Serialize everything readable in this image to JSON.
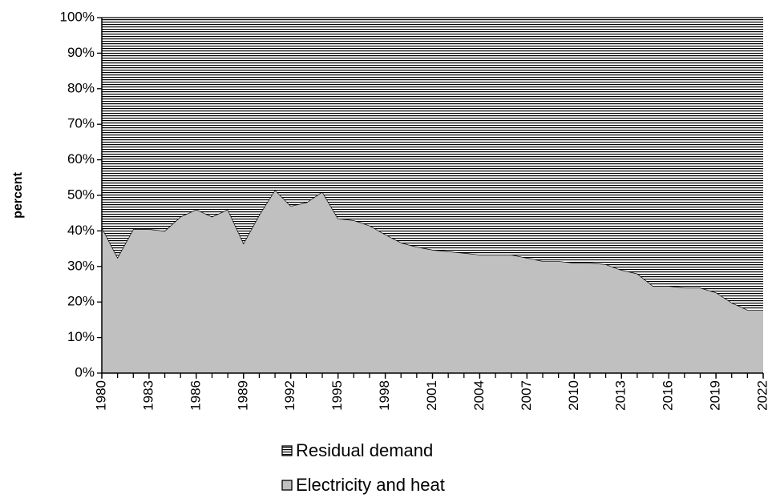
{
  "chart_data": {
    "type": "stacked-area",
    "y_label": "percent",
    "x": [
      1980,
      1981,
      1982,
      1983,
      1984,
      1985,
      1986,
      1987,
      1988,
      1989,
      1990,
      1991,
      1992,
      1993,
      1994,
      1995,
      1996,
      1997,
      1998,
      1999,
      2000,
      2001,
      2002,
      2003,
      2004,
      2005,
      2006,
      2007,
      2008,
      2009,
      2010,
      2011,
      2012,
      2013,
      2014,
      2015,
      2016,
      2017,
      2018,
      2019,
      2020,
      2021,
      2022
    ],
    "xlim": [
      1980,
      2022
    ],
    "xticks": [
      1980,
      1983,
      1986,
      1989,
      1992,
      1995,
      1998,
      2001,
      2004,
      2007,
      2010,
      2013,
      2016,
      2019,
      2022
    ],
    "ylim": [
      0,
      100
    ],
    "yticks": [
      {
        "value": 0,
        "label": "0%"
      },
      {
        "value": 10,
        "label": "10%"
      },
      {
        "value": 20,
        "label": "20%"
      },
      {
        "value": 30,
        "label": "30%"
      },
      {
        "value": 40,
        "label": "40%"
      },
      {
        "value": 50,
        "label": "50%"
      },
      {
        "value": 60,
        "label": "60%"
      },
      {
        "value": 70,
        "label": "70%"
      },
      {
        "value": 80,
        "label": "80%"
      },
      {
        "value": 90,
        "label": "90%"
      },
      {
        "value": 100,
        "label": "100%"
      }
    ],
    "legend": "bottom",
    "series": [
      {
        "name": "Electricity and heat",
        "color": "#c0c0c0",
        "pattern": "solid",
        "values": [
          41,
          32.5,
          40.5,
          40.5,
          40,
          44,
          46,
          44,
          46,
          36.5,
          44.5,
          51.5,
          47,
          48,
          51,
          43.5,
          43,
          41.5,
          39,
          36.7,
          35.5,
          34.7,
          34.2,
          33.8,
          33.3,
          33.3,
          33.3,
          32.4,
          31.5,
          31.5,
          31,
          31,
          30.6,
          29,
          28,
          24.5,
          24.5,
          24,
          24,
          22.7,
          19.8,
          17.8,
          17.8
        ]
      },
      {
        "name": "Residual demand",
        "color": "#000000",
        "pattern": "horizontal",
        "values": [
          59,
          67.5,
          59.5,
          59.5,
          60,
          56,
          54,
          56,
          54,
          63.5,
          55.5,
          48.5,
          53,
          52,
          49,
          56.5,
          57,
          58.5,
          61,
          63.3,
          64.5,
          65.3,
          65.8,
          66.2,
          66.7,
          66.7,
          66.7,
          67.6,
          68.5,
          68.5,
          69,
          69,
          69.4,
          71,
          72,
          75.5,
          75.5,
          76,
          76,
          77.3,
          80.2,
          82.2,
          82.2
        ]
      }
    ]
  }
}
